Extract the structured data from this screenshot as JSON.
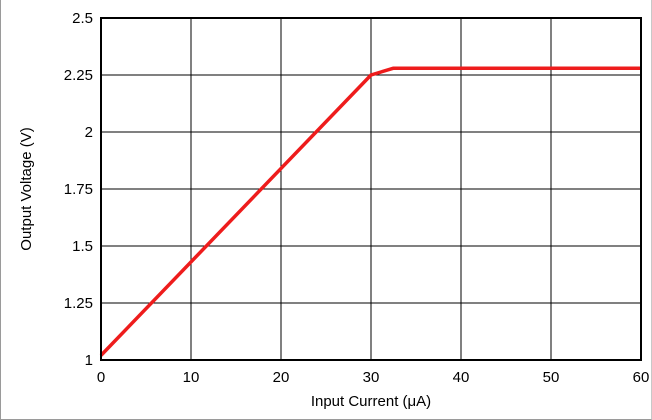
{
  "chart_data": {
    "type": "line",
    "xlabel": "Input Current (μA)",
    "ylabel": "Output Voltage (V)",
    "xlim": [
      0,
      60
    ],
    "ylim": [
      1,
      2.5
    ],
    "x_ticks": [
      "0",
      "10",
      "20",
      "30",
      "40",
      "50",
      "60"
    ],
    "y_ticks": [
      "1",
      "1.25",
      "1.5",
      "1.75",
      "2",
      "2.25",
      "2.5"
    ],
    "grid": true,
    "line_color": "#ee1c1c",
    "series": [
      {
        "x": [
          0,
          30,
          32.5,
          60
        ],
        "y": [
          1.02,
          2.25,
          2.28,
          2.28
        ]
      }
    ]
  }
}
